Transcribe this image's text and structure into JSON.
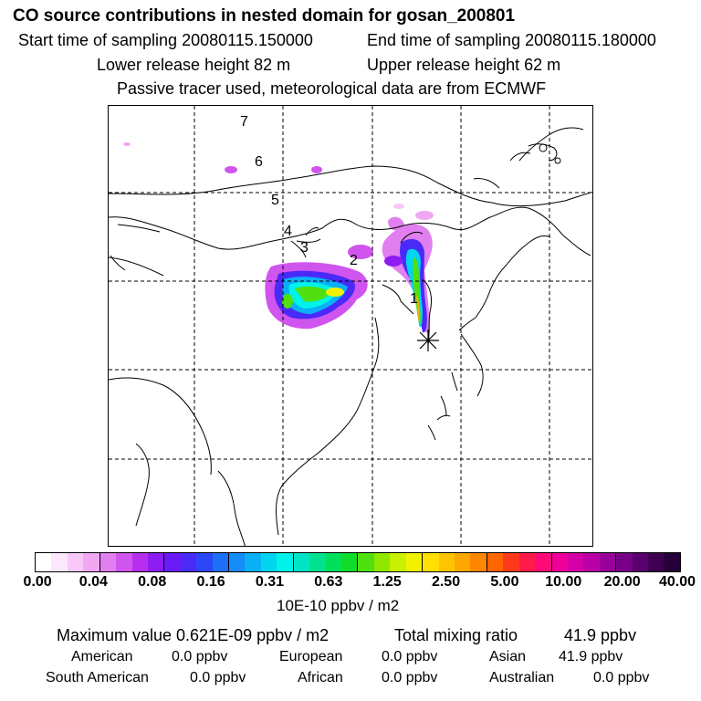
{
  "header": {
    "title": "CO  source contributions in nested domain for gosan_200801",
    "start_label": "Start time of sampling 20080115.150000",
    "end_label": "End time of sampling 20080115.180000",
    "lower_label": "Lower release height   82 m",
    "upper_label": "Upper release height   62 m",
    "note": "Passive tracer used, meteorological data are from ECMWF"
  },
  "map": {
    "station_marker": "asterisk",
    "trajectory_labels": [
      "1",
      "2",
      "3",
      "4",
      "5",
      "6",
      "7"
    ]
  },
  "colorbar": {
    "colors": [
      "#ffffff",
      "#fde7fd",
      "#f8c8f8",
      "#f0a8f3",
      "#e27ff0",
      "#cf55ee",
      "#b62fef",
      "#8e1bf2",
      "#6a1af5",
      "#4a2af7",
      "#2c47f8",
      "#1f6ef8",
      "#158cf8",
      "#0ab0f6",
      "#00d4f0",
      "#00f2e8",
      "#00e6c4",
      "#00e290",
      "#00e05a",
      "#10dc2a",
      "#50e010",
      "#90e800",
      "#c8f000",
      "#f2f200",
      "#ffe000",
      "#ffc400",
      "#ffa600",
      "#ff8600",
      "#ff6600",
      "#ff3a1a",
      "#ff1a4a",
      "#ff0a78",
      "#f00098",
      "#d400a8",
      "#b800a6",
      "#98009a",
      "#780088",
      "#58006e",
      "#3e0052",
      "#26003a"
    ],
    "tick_labels": [
      "0.00",
      "0.04",
      "0.08",
      "0.16",
      "0.31",
      "0.63",
      "1.25",
      "2.50",
      "5.00",
      "10.00",
      "20.00",
      "40.00"
    ],
    "unit": "10E-10 ppbv / m2"
  },
  "summary": {
    "max_label": "Maximum value  0.621E-09 ppbv / m2",
    "total_label": "Total mixing ratio",
    "total_value": "41.9 ppbv"
  },
  "contributions": [
    {
      "name": "American",
      "value": "0.0 ppbv"
    },
    {
      "name": "European",
      "value": "0.0 ppbv"
    },
    {
      "name": "Asian",
      "value": "41.9 ppbv"
    },
    {
      "name": "South American",
      "value": "0.0 ppbv"
    },
    {
      "name": "African",
      "value": "0.0 ppbv"
    },
    {
      "name": "Australian",
      "value": "0.0 ppbv"
    }
  ]
}
